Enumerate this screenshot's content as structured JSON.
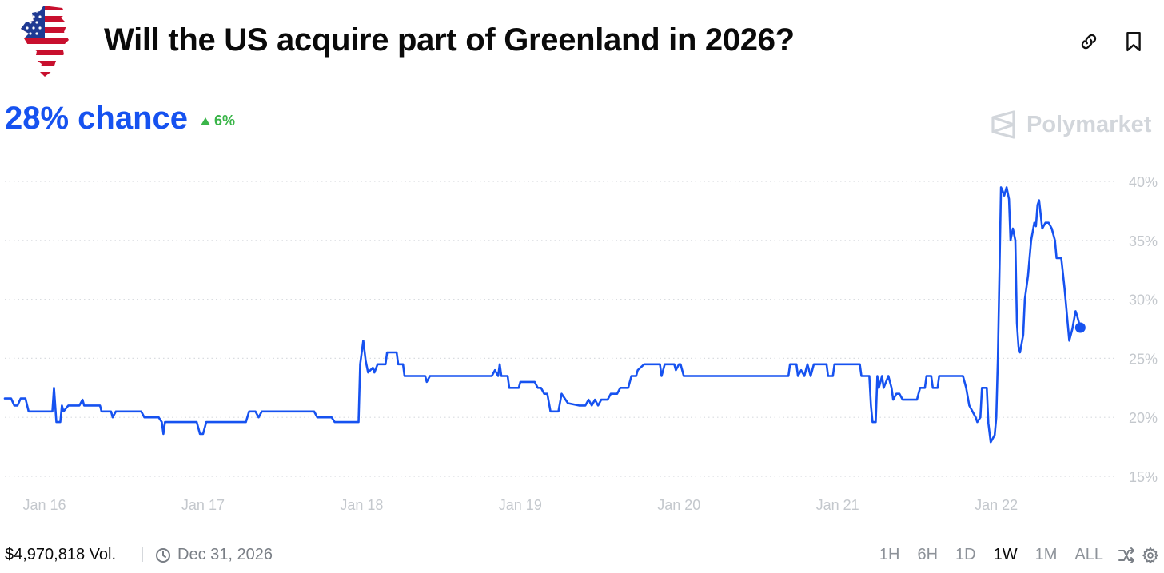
{
  "header": {
    "title": "Will the US acquire part of Greenland in 2026?",
    "icon": "us-flag-greenland-icon"
  },
  "summary": {
    "chance": "28% chance",
    "change": "6%",
    "change_direction": "up",
    "brand": "Polymarket"
  },
  "colors": {
    "accent": "#1652f0",
    "positive": "#3ab549",
    "muted": "#8d9299",
    "grid": "#d9dce0"
  },
  "chart_data": {
    "type": "line",
    "ylim": [
      15,
      40
    ],
    "xlim": [
      0,
      7
    ],
    "grid": true,
    "y_ticks": [
      "15%",
      "20%",
      "25%",
      "30%",
      "35%",
      "40%"
    ],
    "y_tick_values": [
      15,
      20,
      25,
      30,
      35,
      40
    ],
    "x_ticks": [
      "Jan 16",
      "Jan 17",
      "Jan 18",
      "Jan 19",
      "Jan 20",
      "Jan 21",
      "Jan 22"
    ],
    "x_tick_values": [
      0.3,
      1.3,
      2.3,
      3.3,
      4.3,
      5.3,
      6.3
    ],
    "series": [
      {
        "color": "#1652f0",
        "points": [
          [
            0.0,
            21.6
          ],
          [
            0.04,
            21.6
          ],
          [
            0.06,
            21.0
          ],
          [
            0.08,
            21.0
          ],
          [
            0.1,
            21.6
          ],
          [
            0.13,
            21.6
          ],
          [
            0.15,
            20.5
          ],
          [
            0.3,
            20.5
          ],
          [
            0.31,
            22.5
          ],
          [
            0.325,
            19.6
          ],
          [
            0.35,
            19.6
          ],
          [
            0.36,
            21.0
          ],
          [
            0.37,
            20.5
          ],
          [
            0.4,
            21.0
          ],
          [
            0.47,
            21.0
          ],
          [
            0.49,
            21.5
          ],
          [
            0.5,
            21.0
          ],
          [
            0.6,
            21.0
          ],
          [
            0.61,
            20.5
          ],
          [
            0.67,
            20.5
          ],
          [
            0.68,
            20.0
          ],
          [
            0.7,
            20.5
          ],
          [
            0.86,
            20.5
          ],
          [
            0.88,
            20.0
          ],
          [
            0.97,
            20.0
          ],
          [
            0.99,
            19.6
          ],
          [
            1.0,
            18.6
          ],
          [
            1.01,
            19.6
          ],
          [
            1.21,
            19.6
          ],
          [
            1.23,
            18.6
          ],
          [
            1.25,
            18.6
          ],
          [
            1.27,
            19.6
          ],
          [
            1.52,
            19.6
          ],
          [
            1.54,
            20.5
          ],
          [
            1.58,
            20.5
          ],
          [
            1.6,
            20.0
          ],
          [
            1.62,
            20.5
          ],
          [
            1.95,
            20.5
          ],
          [
            1.97,
            20.0
          ],
          [
            2.06,
            20.0
          ],
          [
            2.08,
            19.6
          ],
          [
            2.23,
            19.6
          ],
          [
            2.24,
            24.5
          ],
          [
            2.26,
            26.5
          ],
          [
            2.275,
            24.8
          ],
          [
            2.29,
            23.8
          ],
          [
            2.32,
            24.2
          ],
          [
            2.33,
            23.8
          ],
          [
            2.35,
            24.5
          ],
          [
            2.4,
            24.5
          ],
          [
            2.41,
            25.5
          ],
          [
            2.47,
            25.5
          ],
          [
            2.48,
            24.5
          ],
          [
            2.51,
            24.5
          ],
          [
            2.52,
            23.5
          ],
          [
            2.65,
            23.5
          ],
          [
            2.66,
            23.0
          ],
          [
            2.68,
            23.5
          ],
          [
            3.07,
            23.5
          ],
          [
            3.09,
            24.0
          ],
          [
            3.11,
            23.5
          ],
          [
            3.12,
            24.5
          ],
          [
            3.13,
            23.5
          ],
          [
            3.17,
            23.5
          ],
          [
            3.18,
            22.5
          ],
          [
            3.24,
            22.5
          ],
          [
            3.25,
            23.0
          ],
          [
            3.34,
            23.0
          ],
          [
            3.36,
            22.5
          ],
          [
            3.38,
            22.5
          ],
          [
            3.4,
            22.0
          ],
          [
            3.42,
            22.0
          ],
          [
            3.44,
            20.5
          ],
          [
            3.49,
            20.5
          ],
          [
            3.51,
            22.0
          ],
          [
            3.55,
            21.2
          ],
          [
            3.62,
            21.0
          ],
          [
            3.66,
            21.0
          ],
          [
            3.68,
            21.5
          ],
          [
            3.7,
            21.0
          ],
          [
            3.72,
            21.5
          ],
          [
            3.74,
            21.0
          ],
          [
            3.76,
            21.5
          ],
          [
            3.8,
            21.5
          ],
          [
            3.82,
            22.0
          ],
          [
            3.86,
            22.0
          ],
          [
            3.88,
            22.5
          ],
          [
            3.93,
            22.5
          ],
          [
            3.95,
            23.5
          ],
          [
            3.98,
            23.5
          ],
          [
            3.99,
            24.0
          ],
          [
            4.03,
            24.5
          ],
          [
            4.13,
            24.5
          ],
          [
            4.14,
            23.5
          ],
          [
            4.16,
            24.5
          ],
          [
            4.22,
            24.5
          ],
          [
            4.23,
            24.0
          ],
          [
            4.25,
            24.5
          ],
          [
            4.26,
            24.5
          ],
          [
            4.28,
            23.5
          ],
          [
            4.94,
            23.5
          ],
          [
            4.95,
            24.5
          ],
          [
            4.99,
            24.5
          ],
          [
            5.0,
            23.5
          ],
          [
            5.02,
            24.0
          ],
          [
            5.04,
            23.5
          ],
          [
            5.06,
            24.5
          ],
          [
            5.08,
            23.5
          ],
          [
            5.1,
            24.5
          ],
          [
            5.18,
            24.5
          ],
          [
            5.19,
            23.5
          ],
          [
            5.22,
            23.5
          ],
          [
            5.23,
            24.5
          ],
          [
            5.39,
            24.5
          ],
          [
            5.4,
            23.5
          ],
          [
            5.45,
            23.5
          ],
          [
            5.46,
            21.0
          ],
          [
            5.47,
            19.6
          ],
          [
            5.49,
            19.6
          ],
          [
            5.5,
            23.5
          ],
          [
            5.51,
            22.5
          ],
          [
            5.53,
            23.5
          ],
          [
            5.54,
            22.5
          ],
          [
            5.57,
            23.5
          ],
          [
            5.59,
            22.5
          ],
          [
            5.6,
            21.5
          ],
          [
            5.62,
            22.0
          ],
          [
            5.64,
            22.0
          ],
          [
            5.66,
            21.5
          ],
          [
            5.75,
            21.5
          ],
          [
            5.76,
            22.0
          ],
          [
            5.77,
            22.5
          ],
          [
            5.8,
            22.5
          ],
          [
            5.81,
            23.5
          ],
          [
            5.84,
            23.5
          ],
          [
            5.85,
            22.5
          ],
          [
            5.88,
            22.5
          ],
          [
            5.89,
            23.5
          ],
          [
            6.04,
            23.5
          ],
          [
            6.06,
            22.5
          ],
          [
            6.08,
            21.0
          ],
          [
            6.1,
            20.5
          ],
          [
            6.12,
            20.0
          ],
          [
            6.13,
            19.6
          ],
          [
            6.15,
            20.0
          ],
          [
            6.16,
            22.5
          ],
          [
            6.19,
            22.5
          ],
          [
            6.2,
            19.5
          ],
          [
            6.215,
            17.9
          ],
          [
            6.24,
            18.5
          ],
          [
            6.25,
            20.0
          ],
          [
            6.26,
            25.0
          ],
          [
            6.27,
            32.0
          ],
          [
            6.28,
            39.5
          ],
          [
            6.29,
            39.2
          ],
          [
            6.3,
            38.8
          ],
          [
            6.315,
            39.5
          ],
          [
            6.33,
            38.5
          ],
          [
            6.34,
            35.0
          ],
          [
            6.355,
            36.0
          ],
          [
            6.37,
            35.0
          ],
          [
            6.38,
            28.0
          ],
          [
            6.39,
            26.0
          ],
          [
            6.4,
            25.5
          ],
          [
            6.42,
            27.0
          ],
          [
            6.43,
            30.0
          ],
          [
            6.45,
            32.0
          ],
          [
            6.47,
            35.0
          ],
          [
            6.49,
            36.5
          ],
          [
            6.5,
            36.2
          ],
          [
            6.51,
            38.0
          ],
          [
            6.52,
            38.4
          ],
          [
            6.54,
            36.0
          ],
          [
            6.56,
            36.5
          ],
          [
            6.58,
            36.5
          ],
          [
            6.6,
            36.0
          ],
          [
            6.62,
            35.0
          ],
          [
            6.63,
            33.5
          ],
          [
            6.66,
            33.5
          ],
          [
            6.68,
            31.0
          ],
          [
            6.7,
            28.0
          ],
          [
            6.71,
            26.5
          ],
          [
            6.73,
            27.5
          ],
          [
            6.75,
            29.0
          ],
          [
            6.76,
            28.6
          ],
          [
            6.78,
            27.6
          ]
        ]
      }
    ]
  },
  "footer": {
    "volume": "$4,970,818 Vol.",
    "end_date": "Dec 31, 2026",
    "ranges": [
      {
        "label": "1H",
        "active": false
      },
      {
        "label": "6H",
        "active": false
      },
      {
        "label": "1D",
        "active": false
      },
      {
        "label": "1W",
        "active": true
      },
      {
        "label": "1M",
        "active": false
      },
      {
        "label": "ALL",
        "active": false
      }
    ]
  }
}
